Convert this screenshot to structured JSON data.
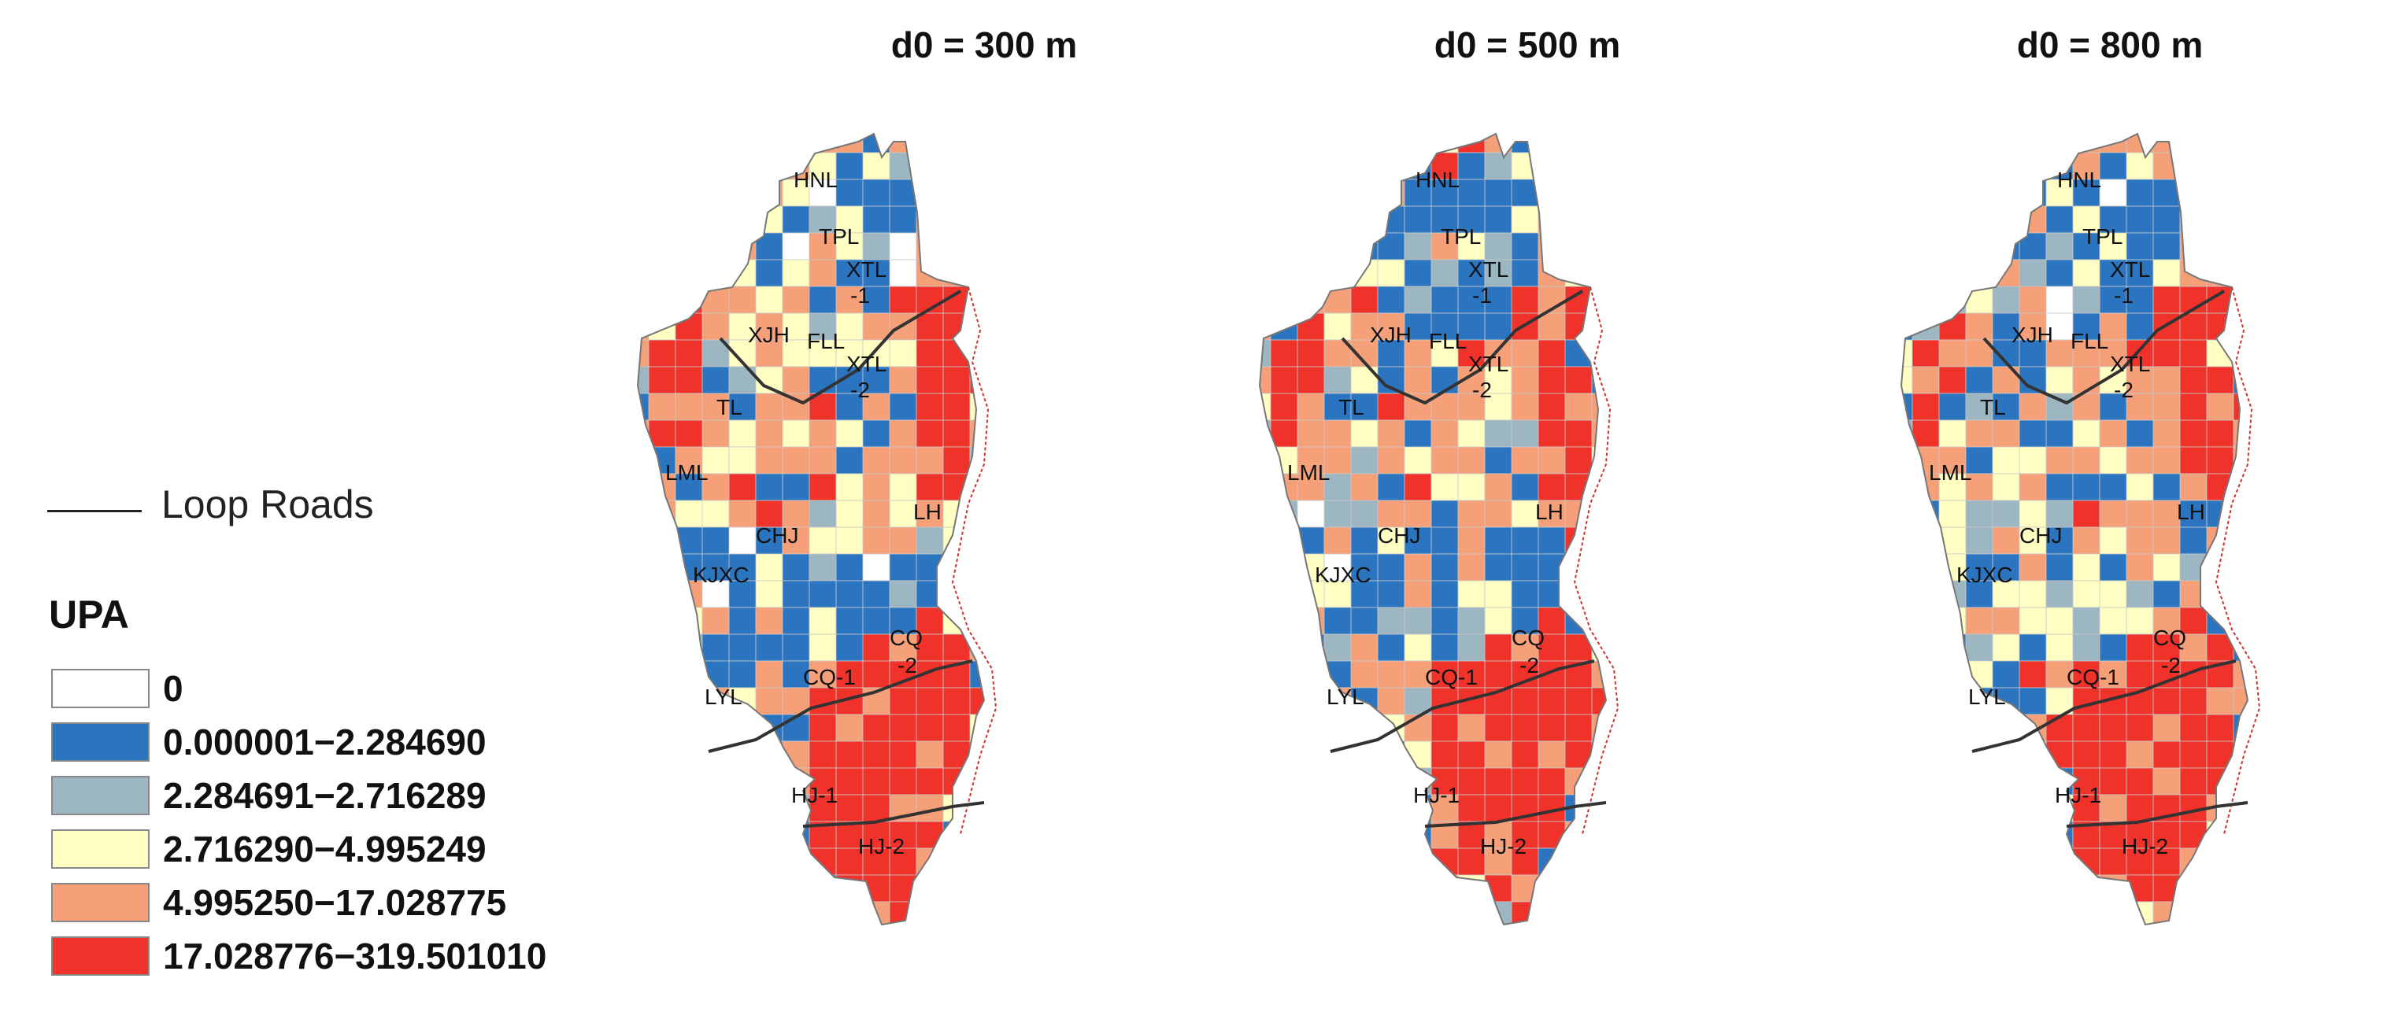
{
  "panels": [
    {
      "title": "d0 = 300 m",
      "seed": 11
    },
    {
      "title": "d0 = 500 m",
      "seed": 37
    },
    {
      "title": "d0 = 800 m",
      "seed": 71
    }
  ],
  "legend": {
    "loop_roads_label": "Loop Roads",
    "title": "UPA",
    "classes": [
      {
        "label": "0",
        "color": "#ffffff"
      },
      {
        "label": "0.000001−2.284690",
        "color": "#2b74c0"
      },
      {
        "label": "2.284691−2.716289",
        "color": "#9cb6c2"
      },
      {
        "label": "2.716290−4.995249",
        "color": "#ffffc4"
      },
      {
        "label": "4.995250−17.028775",
        "color": "#f6a079"
      },
      {
        "label": "17.028776−319.501010",
        "color": "#f0322b"
      }
    ]
  },
  "district_labels": [
    {
      "text": "HNL"
    },
    {
      "text": "TPL"
    },
    {
      "text": "XTL"
    },
    {
      "text": "-1"
    },
    {
      "text": "XJH"
    },
    {
      "text": "FLL"
    },
    {
      "text": "XTL"
    },
    {
      "text": "-2"
    },
    {
      "text": "TL"
    },
    {
      "text": "LML"
    },
    {
      "text": "LH"
    },
    {
      "text": "CHJ"
    },
    {
      "text": "KJXC"
    },
    {
      "text": "CQ"
    },
    {
      "text": "-2"
    },
    {
      "text": "CQ-1"
    },
    {
      "text": "LYL"
    },
    {
      "text": "HJ-1"
    },
    {
      "text": "HJ-2"
    }
  ],
  "map_regions": [
    {
      "name": "north-area",
      "class_by_panel": [
        1,
        1,
        1
      ]
    },
    {
      "name": "xtl-2",
      "class_by_panel": [
        5,
        5,
        5
      ]
    },
    {
      "name": "lml",
      "class_by_panel": [
        5,
        5,
        5
      ]
    },
    {
      "name": "lh",
      "class_by_panel": [
        5,
        5,
        5
      ]
    },
    {
      "name": "central",
      "class_by_panel": [
        4,
        4,
        4
      ]
    },
    {
      "name": "south-west",
      "class_by_panel": [
        1,
        1,
        3
      ]
    },
    {
      "name": "hj",
      "class_by_panel": [
        5,
        5,
        5
      ]
    }
  ]
}
